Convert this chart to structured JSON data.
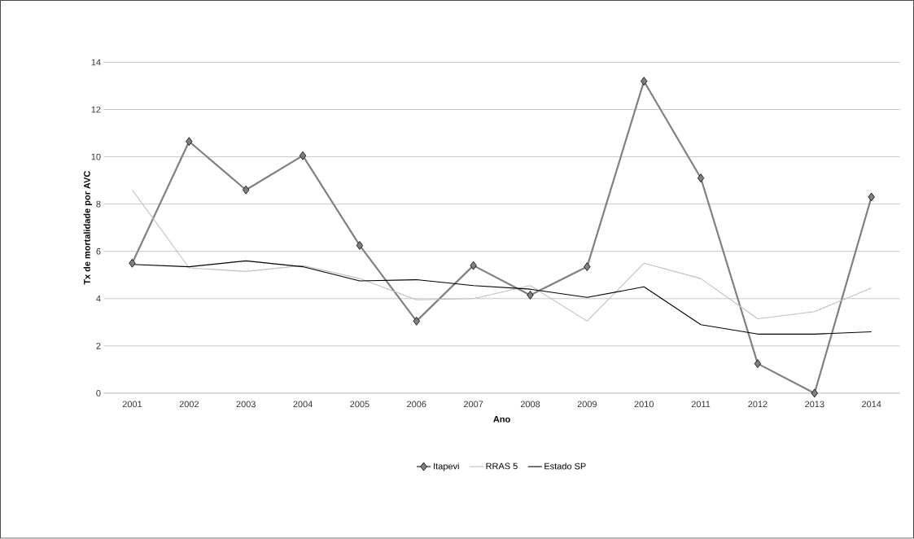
{
  "chart_data": {
    "type": "line",
    "xlabel": "Ano",
    "ylabel": "Tx de mortalidade por AVC",
    "categories": [
      "2001",
      "2002",
      "2003",
      "2004",
      "2005",
      "2006",
      "2007",
      "2008",
      "2009",
      "2010",
      "2011",
      "2012",
      "2013",
      "2014"
    ],
    "series": [
      {
        "name": "Itapevi",
        "color": "#808080",
        "marker": "diamond",
        "values": [
          5.5,
          10.65,
          8.6,
          10.05,
          6.25,
          3.05,
          5.4,
          4.15,
          5.35,
          13.2,
          9.1,
          1.25,
          0,
          8.3
        ]
      },
      {
        "name": "RRAS 5",
        "color": "#c0c0c0",
        "values": [
          8.6,
          5.3,
          5.15,
          5.4,
          4.85,
          3.95,
          4.0,
          4.55,
          3.05,
          5.5,
          4.85,
          3.15,
          3.45,
          4.45
        ]
      },
      {
        "name": "Estado SP",
        "color": "#000000",
        "values": [
          5.45,
          5.35,
          5.6,
          5.35,
          4.75,
          4.8,
          4.55,
          4.4,
          4.05,
          4.5,
          2.9,
          2.5,
          2.5,
          2.6
        ]
      }
    ],
    "ylim": [
      0,
      14
    ],
    "yticks": [
      0,
      2,
      4,
      6,
      8,
      10,
      12,
      14
    ],
    "grid": "y",
    "legend": "bottom",
    "line_style": "solid"
  }
}
